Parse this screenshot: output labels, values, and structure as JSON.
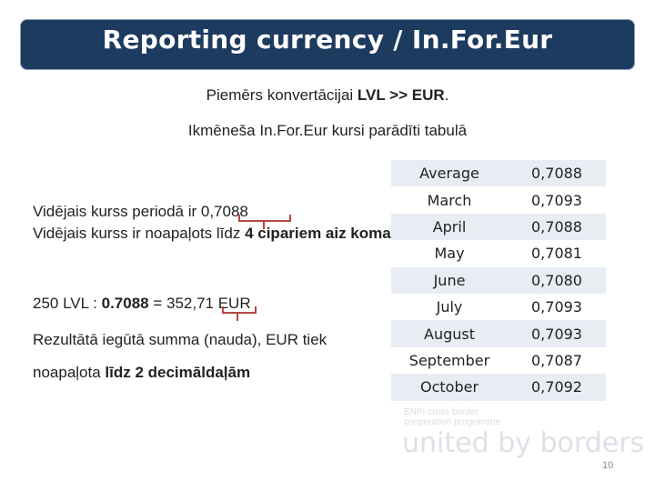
{
  "title": "Reporting currency / In.For.Eur",
  "subtitle1": {
    "before": "Piemērs konvertācijai ",
    "bold": "LVL >> EUR",
    "after": "."
  },
  "subtitle2": "Ikmēneša In.For.Eur kursi parādīti tabulā",
  "rate_text": {
    "line1": "Vidējais kurss periodā ir 0,7088",
    "line2_before": "Vidējais kurss ir noapaļots līdz ",
    "line2_bold": "4 cipariem aiz komata"
  },
  "calc_text": {
    "prefix": "250 LVL : ",
    "rate": "0.7088",
    "middle": " = 352,71 EUR"
  },
  "result_text": {
    "line1": "Rezultātā iegūtā summa (nauda), EUR tiek",
    "line2_before": "noapaļota ",
    "line2_bold": "līdz 2 decimāldaļām"
  },
  "rates_table": {
    "rows": [
      {
        "month": "Average",
        "value": "0,7088"
      },
      {
        "month": "March",
        "value": "0,7093"
      },
      {
        "month": "April",
        "value": "0,7088"
      },
      {
        "month": "May",
        "value": "0,7081"
      },
      {
        "month": "June",
        "value": "0,7080"
      },
      {
        "month": "July",
        "value": "0,7093"
      },
      {
        "month": "August",
        "value": "0,7093"
      },
      {
        "month": "September",
        "value": "0,7087"
      },
      {
        "month": "October",
        "value": "0,7092"
      }
    ]
  },
  "watermark": {
    "small_line1": "ENPI cross border",
    "small_line2": "cooperation programme",
    "big": "united by borders"
  },
  "page_number": "10",
  "colors": {
    "title_bar": "#1d3a5f",
    "bracket": "#b5493f",
    "row_shade": "#e8ecf3"
  }
}
